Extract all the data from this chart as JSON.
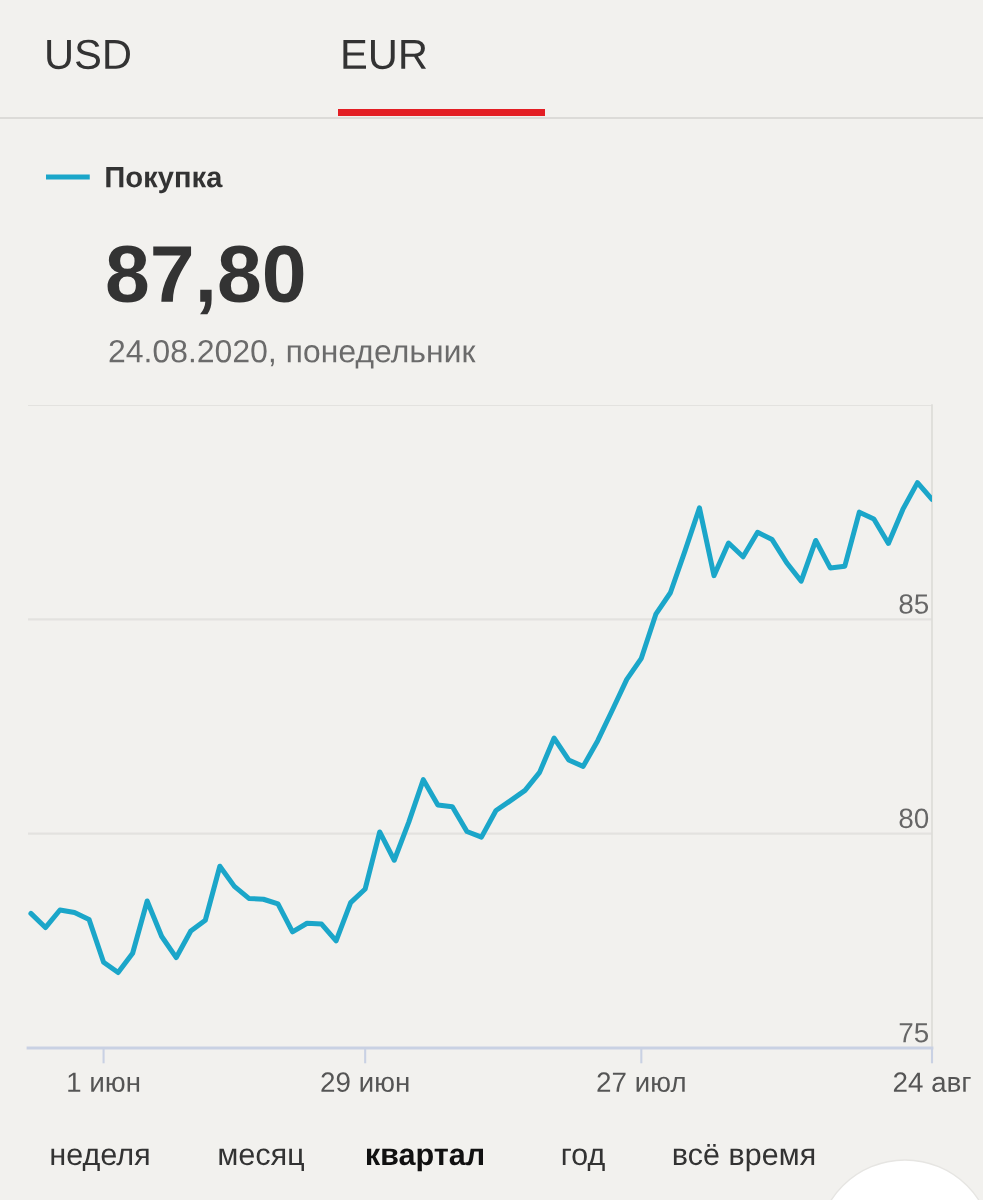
{
  "chart_data": {
    "type": "line",
    "title": "87,80",
    "subtitle": "24.08.2020, понедельник",
    "annotations": [
      "USD",
      "EUR",
      "неделя",
      "месяц",
      "квартал",
      "год",
      "всё время"
    ],
    "categories": [
      null,
      null,
      null,
      null,
      null,
      "1 июн",
      null,
      null,
      null,
      null,
      null,
      null,
      null,
      null,
      null,
      null,
      null,
      null,
      null,
      null,
      null,
      null,
      null,
      "29 июн",
      null,
      null,
      null,
      null,
      null,
      null,
      null,
      null,
      null,
      null,
      null,
      null,
      null,
      null,
      null,
      null,
      null,
      null,
      "27 июл",
      null,
      null,
      null,
      null,
      null,
      null,
      null,
      null,
      null,
      null,
      null,
      null,
      null,
      null,
      null,
      null,
      null,
      null,
      null,
      "24 авг"
    ],
    "series": [
      {
        "name": "Покупка",
        "color": "#1ba6c9",
        "values": [
          78.14,
          77.81,
          78.22,
          78.16,
          78,
          77,
          76.76,
          77.21,
          78.43,
          77.6,
          77.11,
          77.73,
          77.98,
          79.24,
          78.77,
          78.49,
          78.47,
          78.36,
          77.71,
          77.91,
          77.89,
          77.5,
          78.39,
          78.71,
          80.04,
          79.38,
          80.27,
          81.26,
          80.67,
          80.63,
          80.05,
          79.92,
          80.54,
          80.77,
          81.01,
          81.43,
          82.23,
          81.72,
          81.57,
          82.17,
          82.88,
          83.6,
          84.09,
          85.12,
          85.62,
          86.59,
          87.6,
          86.02,
          86.78,
          86.46,
          87.03,
          86.86,
          86.32,
          85.89,
          86.84,
          86.2,
          86.24,
          87.5,
          87.34,
          86.77,
          87.57,
          88.19,
          87.8
        ]
      }
    ],
    "ylim": [
      75,
      90
    ],
    "yticks": [
      75,
      80,
      85,
      {
        "value": 90,
        "label": null
      }
    ],
    "grid": "y",
    "legend": "top left",
    "line_style": "solid"
  }
}
